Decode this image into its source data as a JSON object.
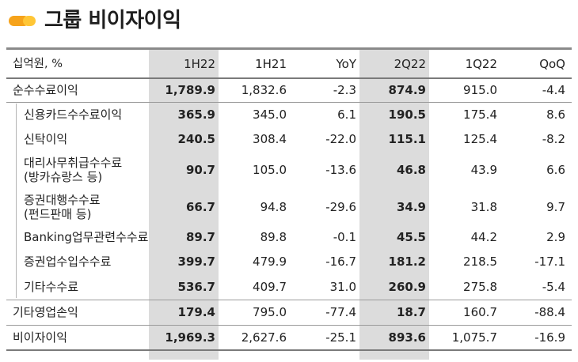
{
  "title": "그룹 비이자이익",
  "colors": {
    "accent_dark": "#f6a31b",
    "accent_light": "#ffc636",
    "highlight": "#dcdcdc"
  },
  "columns": [
    "십억원, %",
    "1H22",
    "1H21",
    "YoY",
    "2Q22",
    "1Q22",
    "QoQ"
  ],
  "rows": [
    {
      "label": "순수수료이익",
      "values": [
        "1,789.9",
        "1,832.6",
        "-2.3",
        "874.9",
        "915.0",
        "-4.4"
      ]
    },
    {
      "label": "신용카드수수료이익",
      "values": [
        "365.9",
        "345.0",
        "6.1",
        "190.5",
        "175.4",
        "8.6"
      ]
    },
    {
      "label": "신탁이익",
      "values": [
        "240.5",
        "308.4",
        "-22.0",
        "115.1",
        "125.4",
        "-8.2"
      ]
    },
    {
      "label": "대리사무취급수수료",
      "label2": "(방카슈랑스 등)",
      "values": [
        "90.7",
        "105.0",
        "-13.6",
        "46.8",
        "43.9",
        "6.6"
      ]
    },
    {
      "label": "증권대행수수료",
      "label2": "(펀드판매 등)",
      "values": [
        "66.7",
        "94.8",
        "-29.6",
        "34.9",
        "31.8",
        "9.7"
      ]
    },
    {
      "label": "Banking업무관련수수료",
      "values": [
        "89.7",
        "89.8",
        "-0.1",
        "45.5",
        "44.2",
        "2.9"
      ]
    },
    {
      "label": "증권업수입수수료",
      "values": [
        "399.7",
        "479.9",
        "-16.7",
        "181.2",
        "218.5",
        "-17.1"
      ]
    },
    {
      "label": "기타수수료",
      "values": [
        "536.7",
        "409.7",
        "31.0",
        "260.9",
        "275.8",
        "-5.4"
      ]
    },
    {
      "label": "기타영업손익",
      "values": [
        "179.4",
        "795.0",
        "-77.4",
        "18.7",
        "160.7",
        "-88.4"
      ]
    },
    {
      "label": "비이자이익",
      "values": [
        "1,969.3",
        "2,627.6",
        "-25.1",
        "893.6",
        "1,075.7",
        "-16.9"
      ]
    }
  ]
}
